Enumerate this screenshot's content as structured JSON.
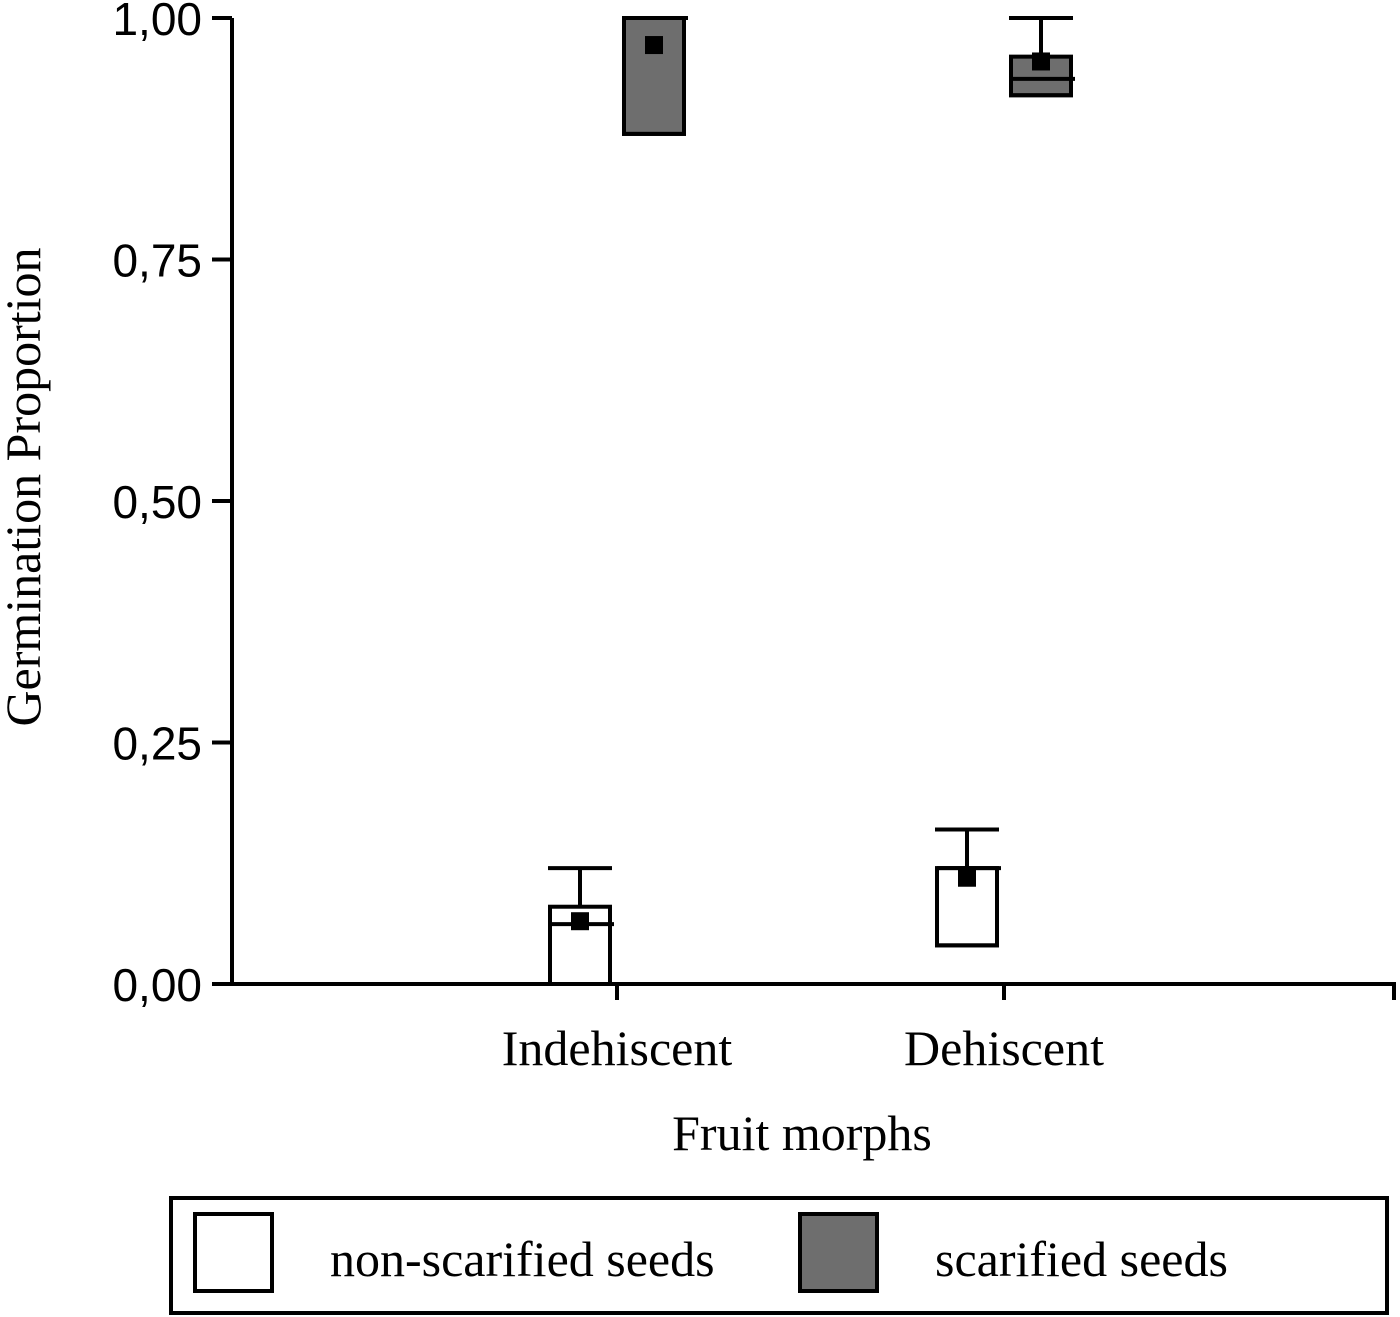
{
  "chart_data": {
    "type": "box",
    "title": "",
    "xlabel": "Fruit morphs",
    "ylabel": "Germination Proportion",
    "ylim": [
      0,
      1
    ],
    "y_ticks": [
      {
        "value": 0.0,
        "label": "0,00"
      },
      {
        "value": 0.25,
        "label": "0,25"
      },
      {
        "value": 0.5,
        "label": "0,50"
      },
      {
        "value": 0.75,
        "label": "0,75"
      },
      {
        "value": 1.0,
        "label": "1,00"
      }
    ],
    "categories": [
      "Indehiscent",
      "Dehiscent"
    ],
    "series": [
      {
        "name": "non-scarified seeds",
        "fill": "#ffffff",
        "boxes": [
          {
            "category": "Indehiscent",
            "whisker_low": 0.0,
            "q1": 0.0,
            "median": 0.062,
            "q3": 0.08,
            "whisker_high": 0.12,
            "mean": 0.065
          },
          {
            "category": "Dehiscent",
            "whisker_low": 0.04,
            "q1": 0.04,
            "median": 0.12,
            "q3": 0.12,
            "whisker_high": 0.16,
            "mean": 0.11
          }
        ]
      },
      {
        "name": "scarified seeds",
        "fill": "#6e6e6e",
        "boxes": [
          {
            "category": "Indehiscent",
            "whisker_low": 0.88,
            "q1": 0.88,
            "median": 1.0,
            "q3": 1.0,
            "whisker_high": 1.0,
            "mean": 0.972
          },
          {
            "category": "Dehiscent",
            "whisker_low": 0.92,
            "q1": 0.92,
            "median": 0.937,
            "q3": 0.96,
            "whisker_high": 1.0,
            "mean": 0.955
          }
        ]
      }
    ],
    "legend": {
      "placement": "bottom",
      "entries": [
        {
          "label": "non-scarified seeds",
          "color": "#ffffff"
        },
        {
          "label": "scarified seeds",
          "color": "#6e6e6e"
        }
      ]
    }
  }
}
